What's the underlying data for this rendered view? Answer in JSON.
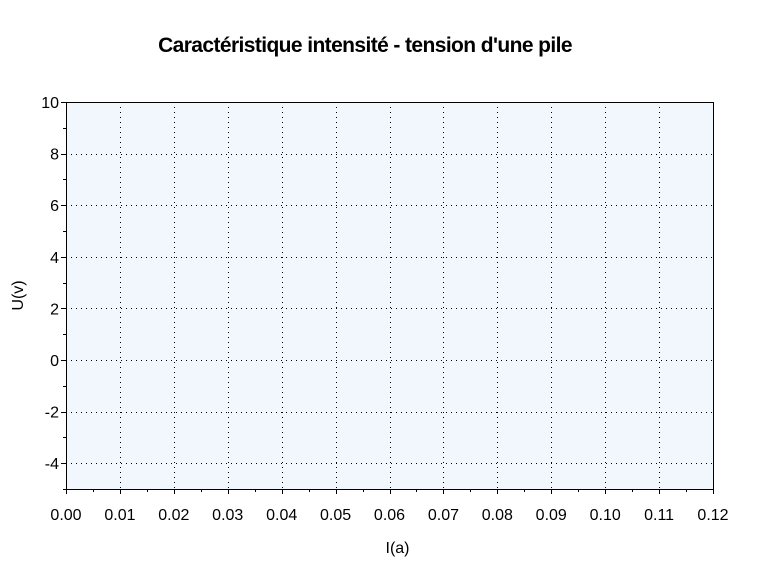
{
  "chart_data": {
    "type": "scatter",
    "title": "Caractéristique intensité - tension d'une pile",
    "xlabel": "I(a)",
    "ylabel": "U(v)",
    "xlim": [
      0,
      0.12
    ],
    "ylim": [
      -5,
      10
    ],
    "x_ticks": [
      "0.00",
      "0.01",
      "0.02",
      "0.03",
      "0.04",
      "0.05",
      "0.06",
      "0.07",
      "0.08",
      "0.09",
      "0.10",
      "0.11",
      "0.12"
    ],
    "x_tick_values": [
      0,
      0.01,
      0.02,
      0.03,
      0.04,
      0.05,
      0.06,
      0.07,
      0.08,
      0.09,
      0.1,
      0.11,
      0.12
    ],
    "y_ticks": [
      "10",
      "8",
      "6",
      "4",
      "2",
      "0",
      "-2",
      "-4"
    ],
    "y_tick_values": [
      10,
      8,
      6,
      4,
      2,
      0,
      -2,
      -4
    ],
    "grid": true,
    "series": []
  },
  "colors": {
    "plot_background": "#f1f7fd",
    "grid": "#000000",
    "axis": "#000000"
  }
}
